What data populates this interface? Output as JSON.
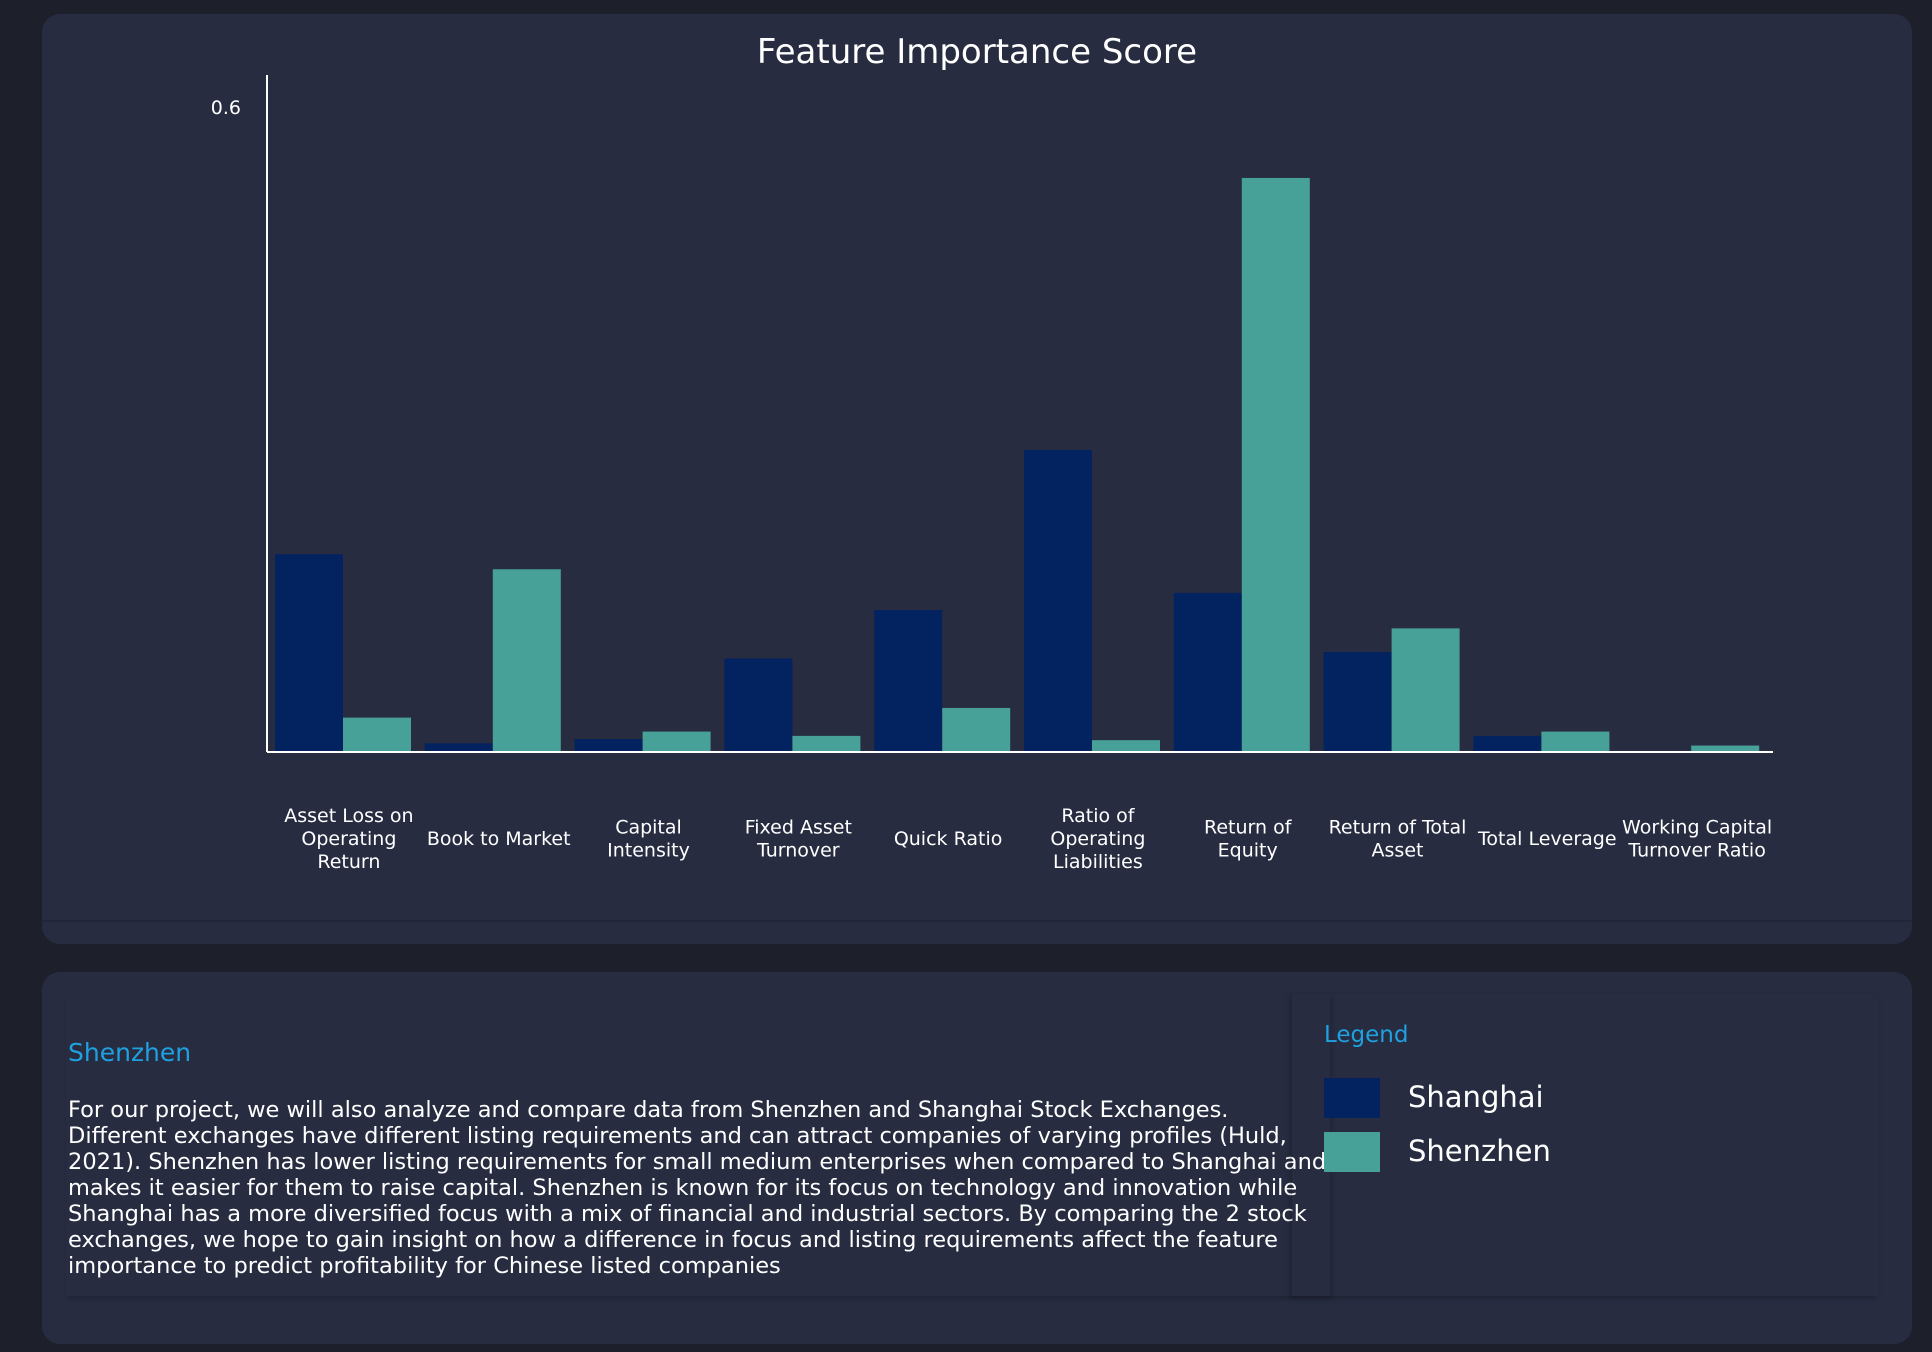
{
  "chart_data": {
    "type": "bar",
    "title": "Feature Importance Score",
    "xlabel": "",
    "ylabel": "",
    "ylim": [
      0,
      0.6
    ],
    "yticks": [
      {
        "value": 0.6,
        "label": "0.6"
      }
    ],
    "categories": [
      "Asset Loss on Operating Return",
      "Book to Market",
      "Capital Intensity",
      "Fixed Asset Turnover",
      "Quick Ratio",
      "Ratio of Operating Liabilities",
      "Return of Equity",
      "Return of Total Asset",
      "Total Leverage",
      "Working Capital Turnover Ratio"
    ],
    "series": [
      {
        "name": "Shanghai",
        "color": "#022260",
        "values": [
          0.184,
          0.008,
          0.012,
          0.087,
          0.132,
          0.281,
          0.148,
          0.093,
          0.015,
          0.0
        ]
      },
      {
        "name": "Shenzhen",
        "color": "#48a198",
        "values": [
          0.032,
          0.17,
          0.019,
          0.015,
          0.041,
          0.011,
          0.534,
          0.115,
          0.019,
          0.006
        ]
      }
    ],
    "legend": "separate panel"
  },
  "info": {
    "heading": "Shenzhen",
    "body": "For our project, we will also analyze and compare data from Shenzhen and Shanghai Stock Exchanges. Different exchanges have different listing requirements and can attract companies of varying profiles (Huld, 2021). Shenzhen has lower listing requirements for small medium enterprises when compared to Shanghai and makes it easier for them to raise capital. Shenzhen is known for its focus on technology and innovation while Shanghai has a more diversified focus with a mix of financial and industrial sectors. By comparing the 2 stock exchanges, we hope to gain insight on how a difference in focus and listing requirements affect the feature importance to predict profitability for Chinese listed companies"
  },
  "legend": {
    "title": "Legend",
    "items": [
      {
        "label": "Shanghai",
        "color": "#022260"
      },
      {
        "label": "Shenzhen",
        "color": "#48a198"
      }
    ]
  }
}
